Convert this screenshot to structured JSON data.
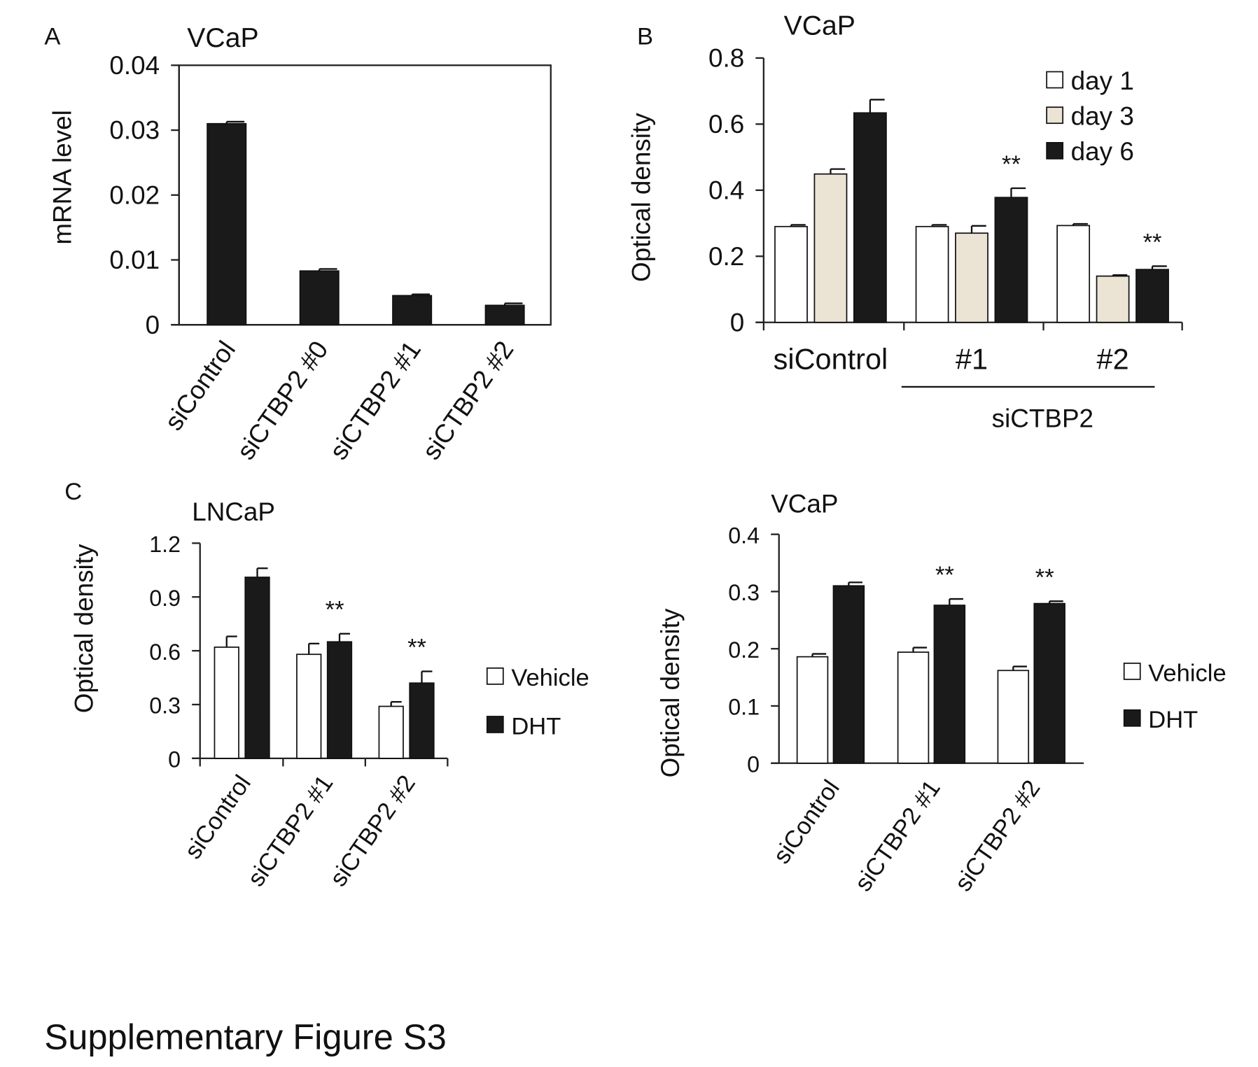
{
  "figure_caption": "Supplementary Figure S3",
  "chart_data": [
    {
      "panel": "A",
      "type": "bar",
      "title": "VCaP",
      "ylabel": "mRNA level",
      "xlabel": "",
      "ylim": [
        0,
        0.04
      ],
      "yticks": [
        "0",
        "0.01",
        "0.02",
        "0.03",
        "0.04"
      ],
      "categories": [
        "siControl",
        "siCTBP2 #0",
        "siCTBP2 #1",
        "siCTBP2 #2"
      ],
      "series": [
        {
          "values": [
            0.031,
            0.0083,
            0.0045,
            0.003
          ],
          "errors": [
            0.0003,
            0.0003,
            0.0002,
            0.0003
          ],
          "color": "#1a1a1a"
        }
      ],
      "frame": true,
      "grid": false
    },
    {
      "panel": "B",
      "type": "bar",
      "title": "VCaP",
      "ylabel": "Optical density",
      "xlabel": "",
      "ylim": [
        0,
        0.8
      ],
      "yticks": [
        "0",
        "0.2",
        "0.4",
        "0.6",
        "0.8"
      ],
      "categories": [
        "siControl",
        "#1",
        "#2"
      ],
      "group_label": "siCTBP2",
      "series": [
        {
          "name": "day 1",
          "values": [
            0.29,
            0.29,
            0.293
          ],
          "errors": [
            0.005,
            0.005,
            0.005
          ],
          "color": "#ffffff"
        },
        {
          "name": "day 3",
          "values": [
            0.449,
            0.27,
            0.14
          ],
          "errors": [
            0.015,
            0.022,
            0.003
          ],
          "color": "#ebe4d5"
        },
        {
          "name": "day 6",
          "values": [
            0.634,
            0.378,
            0.16
          ],
          "errors": [
            0.04,
            0.028,
            0.01
          ],
          "color": "#1a1a1a"
        }
      ],
      "annotations": [
        {
          "category": "#1",
          "series": "day 6",
          "text": "**"
        },
        {
          "category": "#2",
          "series": "day 6",
          "text": "**"
        }
      ],
      "legend": "top-right",
      "grid": false
    },
    {
      "panel": "C",
      "type": "bar",
      "title": "LNCaP",
      "ylabel": "Optical density",
      "xlabel": "",
      "ylim": [
        0,
        1.2
      ],
      "yticks": [
        "0",
        "0.3",
        "0.6",
        "0.9",
        "1.2"
      ],
      "categories": [
        "siControl",
        "siCTBP2 #1",
        "siCTBP2 #2"
      ],
      "series": [
        {
          "name": "Vehicle",
          "values": [
            0.62,
            0.58,
            0.29
          ],
          "errors": [
            0.06,
            0.06,
            0.025
          ],
          "color": "#ffffff"
        },
        {
          "name": "DHT",
          "values": [
            1.01,
            0.65,
            0.42
          ],
          "errors": [
            0.05,
            0.045,
            0.065
          ],
          "color": "#1a1a1a"
        }
      ],
      "annotations": [
        {
          "category": "siCTBP2 #1",
          "text": "**"
        },
        {
          "category": "siCTBP2 #2",
          "text": "**"
        }
      ],
      "legend": "right",
      "grid": false
    },
    {
      "panel": "",
      "type": "bar",
      "title": "VCaP",
      "ylabel": "Optical density",
      "xlabel": "",
      "ylim": [
        0,
        0.4
      ],
      "yticks": [
        "0",
        "0.1",
        "0.2",
        "0.3",
        "0.4"
      ],
      "categories": [
        "siControl",
        "siCTBP2 #1",
        "siCTBP2 #2"
      ],
      "series": [
        {
          "name": "Vehicle",
          "values": [
            0.186,
            0.194,
            0.162
          ],
          "errors": [
            0.005,
            0.008,
            0.007
          ],
          "color": "#ffffff"
        },
        {
          "name": "DHT",
          "values": [
            0.31,
            0.276,
            0.279
          ],
          "errors": [
            0.006,
            0.011,
            0.004
          ],
          "color": "#1a1a1a"
        }
      ],
      "annotations": [
        {
          "category": "siCTBP2 #1",
          "text": "**"
        },
        {
          "category": "siCTBP2 #2",
          "text": "**"
        }
      ],
      "legend": "right",
      "grid": false
    }
  ]
}
